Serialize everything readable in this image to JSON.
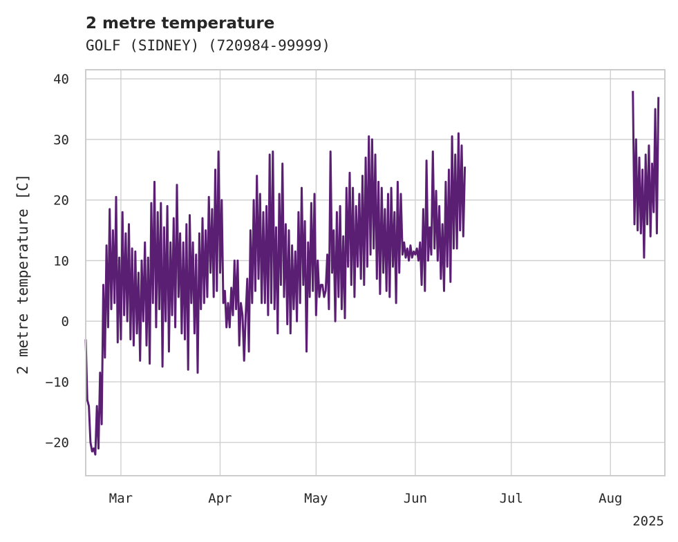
{
  "chart_data": {
    "type": "line",
    "title": "2 metre temperature",
    "subtitle": "GOLF (SIDNEY) (720984-99999)",
    "ylabel": "2 metre temperature [C]",
    "xlabel": "",
    "xlim": [
      "2025-02-18",
      "2025-08-18"
    ],
    "ylim": [
      -25.5,
      41.5
    ],
    "yticks": [
      40,
      30,
      20,
      10,
      0,
      -10,
      -20
    ],
    "ytick_labels": [
      "40",
      "30",
      "20",
      "10",
      "0",
      "−10",
      "−20"
    ],
    "xticks": [
      "2025-03-01",
      "2025-04-01",
      "2025-05-01",
      "2025-06-01",
      "2025-07-01",
      "2025-08-01"
    ],
    "xtick_labels": [
      "Mar",
      "Apr",
      "May",
      "Jun",
      "Jul",
      "Aug"
    ],
    "xaxis_offset_label": "2025",
    "grid": true,
    "line_color": "#5a1f73",
    "series": [
      {
        "points": [
          [
            "2025-02-18T00",
            -3
          ],
          [
            "2025-02-18T12",
            -13
          ],
          [
            "2025-02-19T00",
            -14
          ],
          [
            "2025-02-19T12",
            -20
          ],
          [
            "2025-02-20T00",
            -21.5
          ],
          [
            "2025-02-20T12",
            -21
          ],
          [
            "2025-02-21T00",
            -22
          ],
          [
            "2025-02-21T12",
            -14
          ],
          [
            "2025-02-22T00",
            -21
          ],
          [
            "2025-02-22T12",
            -8.5
          ],
          [
            "2025-02-23T00",
            -17
          ],
          [
            "2025-02-23T12",
            6
          ],
          [
            "2025-02-24T00",
            -6
          ],
          [
            "2025-02-24T12",
            12.5
          ],
          [
            "2025-02-25T00",
            -1
          ],
          [
            "2025-02-25T12",
            18.5
          ],
          [
            "2025-02-26T00",
            2
          ],
          [
            "2025-02-26T12",
            15
          ],
          [
            "2025-02-27T00",
            3
          ],
          [
            "2025-02-27T12",
            20.5
          ],
          [
            "2025-02-28T00",
            -3.5
          ],
          [
            "2025-02-28T12",
            10.5
          ],
          [
            "2025-03-01T00",
            -3
          ],
          [
            "2025-03-01T12",
            18
          ],
          [
            "2025-03-02T00",
            1
          ],
          [
            "2025-03-02T12",
            14.5
          ],
          [
            "2025-03-03T00",
            0
          ],
          [
            "2025-03-03T12",
            16
          ],
          [
            "2025-03-04T00",
            -3
          ],
          [
            "2025-03-04T12",
            12
          ],
          [
            "2025-03-05T00",
            -4
          ],
          [
            "2025-03-05T12",
            11.5
          ],
          [
            "2025-03-06T00",
            -2
          ],
          [
            "2025-03-06T12",
            8
          ],
          [
            "2025-03-07T00",
            -6.5
          ],
          [
            "2025-03-07T12",
            10
          ],
          [
            "2025-03-08T00",
            0
          ],
          [
            "2025-03-08T12",
            13
          ],
          [
            "2025-03-09T00",
            -4
          ],
          [
            "2025-03-09T12",
            10.5
          ],
          [
            "2025-03-10T00",
            -7
          ],
          [
            "2025-03-10T12",
            19.5
          ],
          [
            "2025-03-11T00",
            3
          ],
          [
            "2025-03-11T12",
            23
          ],
          [
            "2025-03-12T00",
            -1
          ],
          [
            "2025-03-12T12",
            18
          ],
          [
            "2025-03-13T00",
            2
          ],
          [
            "2025-03-13T12",
            19.5
          ],
          [
            "2025-03-14T00",
            -7.5
          ],
          [
            "2025-03-14T12",
            15.5
          ],
          [
            "2025-03-15T00",
            0
          ],
          [
            "2025-03-15T12",
            19
          ],
          [
            "2025-03-16T00",
            -5
          ],
          [
            "2025-03-16T12",
            13
          ],
          [
            "2025-03-17T00",
            1
          ],
          [
            "2025-03-17T12",
            17
          ],
          [
            "2025-03-18T00",
            -1
          ],
          [
            "2025-03-18T12",
            22.5
          ],
          [
            "2025-03-19T00",
            4
          ],
          [
            "2025-03-19T12",
            14.5
          ],
          [
            "2025-03-20T00",
            -2
          ],
          [
            "2025-03-20T12",
            13
          ],
          [
            "2025-03-21T00",
            -3
          ],
          [
            "2025-03-21T12",
            16
          ],
          [
            "2025-03-22T00",
            -8
          ],
          [
            "2025-03-22T12",
            17.5
          ],
          [
            "2025-03-23T00",
            3
          ],
          [
            "2025-03-23T12",
            13
          ],
          [
            "2025-03-24T00",
            -2
          ],
          [
            "2025-03-24T12",
            11
          ],
          [
            "2025-03-25T00",
            -8.5
          ],
          [
            "2025-03-25T12",
            14.5
          ],
          [
            "2025-03-26T00",
            2
          ],
          [
            "2025-03-26T12",
            17
          ],
          [
            "2025-03-27T00",
            3
          ],
          [
            "2025-03-27T12",
            15
          ],
          [
            "2025-03-28T00",
            4
          ],
          [
            "2025-03-28T12",
            20.5
          ],
          [
            "2025-03-29T00",
            8
          ],
          [
            "2025-03-29T12",
            18.5
          ],
          [
            "2025-03-30T00",
            4
          ],
          [
            "2025-03-30T12",
            25
          ],
          [
            "2025-03-31T00",
            5
          ],
          [
            "2025-03-31T12",
            28
          ],
          [
            "2025-04-01T00",
            8
          ],
          [
            "2025-04-01T12",
            20
          ],
          [
            "2025-04-02T00",
            3
          ],
          [
            "2025-04-02T12",
            5
          ],
          [
            "2025-04-03T00",
            -1
          ],
          [
            "2025-04-03T12",
            3
          ],
          [
            "2025-04-04T00",
            -1
          ],
          [
            "2025-04-04T12",
            5.5
          ],
          [
            "2025-04-05T00",
            1
          ],
          [
            "2025-04-05T12",
            10
          ],
          [
            "2025-04-06T00",
            2
          ],
          [
            "2025-04-06T12",
            10
          ],
          [
            "2025-04-07T00",
            -4
          ],
          [
            "2025-04-07T12",
            3
          ],
          [
            "2025-04-08T00",
            1
          ],
          [
            "2025-04-08T12",
            -6.5
          ],
          [
            "2025-04-09T00",
            1
          ],
          [
            "2025-04-09T12",
            7
          ],
          [
            "2025-04-10T00",
            -5
          ],
          [
            "2025-04-10T12",
            15
          ],
          [
            "2025-04-11T00",
            3
          ],
          [
            "2025-04-11T12",
            20
          ],
          [
            "2025-04-12T00",
            5
          ],
          [
            "2025-04-12T12",
            24
          ],
          [
            "2025-04-13T00",
            7
          ],
          [
            "2025-04-13T12",
            21
          ],
          [
            "2025-04-14T00",
            3
          ],
          [
            "2025-04-14T12",
            18
          ],
          [
            "2025-04-15T00",
            3
          ],
          [
            "2025-04-15T12",
            19
          ],
          [
            "2025-04-16T00",
            1
          ],
          [
            "2025-04-16T12",
            27.5
          ],
          [
            "2025-04-17T00",
            3
          ],
          [
            "2025-04-17T12",
            28
          ],
          [
            "2025-04-18T00",
            2
          ],
          [
            "2025-04-18T12",
            15.5
          ],
          [
            "2025-04-19T00",
            -2
          ],
          [
            "2025-04-19T12",
            21
          ],
          [
            "2025-04-20T00",
            6
          ],
          [
            "2025-04-20T12",
            26
          ],
          [
            "2025-04-21T00",
            4
          ],
          [
            "2025-04-21T12",
            16
          ],
          [
            "2025-04-22T00",
            -0.5
          ],
          [
            "2025-04-22T12",
            15
          ],
          [
            "2025-04-23T00",
            -2
          ],
          [
            "2025-04-23T12",
            12.5
          ],
          [
            "2025-04-24T00",
            2
          ],
          [
            "2025-04-24T12",
            11.5
          ],
          [
            "2025-04-25T00",
            0
          ],
          [
            "2025-04-25T12",
            18
          ],
          [
            "2025-04-26T00",
            3
          ],
          [
            "2025-04-26T12",
            22
          ],
          [
            "2025-04-27T00",
            6
          ],
          [
            "2025-04-27T12",
            16.5
          ],
          [
            "2025-04-28T00",
            -5
          ],
          [
            "2025-04-28T12",
            13
          ],
          [
            "2025-04-29T00",
            4
          ],
          [
            "2025-04-29T12",
            19.5
          ],
          [
            "2025-04-30T00",
            5
          ],
          [
            "2025-04-30T12",
            21
          ],
          [
            "2025-05-01T00",
            1
          ],
          [
            "2025-05-01T12",
            10
          ],
          [
            "2025-05-02T00",
            4
          ],
          [
            "2025-05-02T12",
            6
          ],
          [
            "2025-05-03T00",
            6
          ],
          [
            "2025-05-03T12",
            4
          ],
          [
            "2025-05-04T00",
            5
          ],
          [
            "2025-05-04T12",
            11
          ],
          [
            "2025-05-05T00",
            2
          ],
          [
            "2025-05-05T12",
            28
          ],
          [
            "2025-05-06T00",
            8
          ],
          [
            "2025-05-06T12",
            15
          ],
          [
            "2025-05-07T00",
            0
          ],
          [
            "2025-05-07T12",
            18
          ],
          [
            "2025-05-08T00",
            4
          ],
          [
            "2025-05-08T12",
            19
          ],
          [
            "2025-05-09T00",
            2
          ],
          [
            "2025-05-09T12",
            14
          ],
          [
            "2025-05-10T00",
            0.5
          ],
          [
            "2025-05-10T12",
            22
          ],
          [
            "2025-05-11T00",
            9
          ],
          [
            "2025-05-11T12",
            24.5
          ],
          [
            "2025-05-12T00",
            6
          ],
          [
            "2025-05-12T12",
            22
          ],
          [
            "2025-05-13T00",
            4
          ],
          [
            "2025-05-13T12",
            19
          ],
          [
            "2025-05-14T00",
            9
          ],
          [
            "2025-05-14T12",
            21
          ],
          [
            "2025-05-15T00",
            7
          ],
          [
            "2025-05-15T12",
            24
          ],
          [
            "2025-05-16T00",
            6
          ],
          [
            "2025-05-16T12",
            27
          ],
          [
            "2025-05-17T00",
            9
          ],
          [
            "2025-05-17T12",
            30.5
          ],
          [
            "2025-05-18T00",
            11
          ],
          [
            "2025-05-18T12",
            30
          ],
          [
            "2025-05-19T00",
            12
          ],
          [
            "2025-05-19T12",
            27.5
          ],
          [
            "2025-05-20T00",
            7
          ],
          [
            "2025-05-20T12",
            23
          ],
          [
            "2025-05-21T00",
            4.5
          ],
          [
            "2025-05-21T12",
            22
          ],
          [
            "2025-05-22T00",
            8
          ],
          [
            "2025-05-22T12",
            18.5
          ],
          [
            "2025-05-23T00",
            5
          ],
          [
            "2025-05-23T12",
            21
          ],
          [
            "2025-05-24T00",
            4
          ],
          [
            "2025-05-24T12",
            22
          ],
          [
            "2025-05-25T00",
            9
          ],
          [
            "2025-05-25T12",
            18
          ],
          [
            "2025-05-26T00",
            3
          ],
          [
            "2025-05-26T12",
            23
          ],
          [
            "2025-05-27T00",
            8
          ],
          [
            "2025-05-27T12",
            21
          ],
          [
            "2025-05-28T00",
            11
          ],
          [
            "2025-05-28T12",
            13
          ],
          [
            "2025-05-29T00",
            10.5
          ],
          [
            "2025-05-29T12",
            12
          ],
          [
            "2025-05-30T00",
            10
          ],
          [
            "2025-05-30T12",
            12.5
          ],
          [
            "2025-05-31T00",
            10.5
          ],
          [
            "2025-05-31T12",
            11.5
          ],
          [
            "2025-06-01T00",
            11
          ],
          [
            "2025-06-01T12",
            12
          ],
          [
            "2025-06-02T00",
            10
          ],
          [
            "2025-06-02T12",
            13
          ],
          [
            "2025-06-03T00",
            6
          ],
          [
            "2025-06-03T12",
            18.5
          ],
          [
            "2025-06-04T00",
            5
          ],
          [
            "2025-06-04T12",
            26.5
          ],
          [
            "2025-06-05T00",
            10
          ],
          [
            "2025-06-05T12",
            15.5
          ],
          [
            "2025-06-06T00",
            11
          ],
          [
            "2025-06-06T12",
            28
          ],
          [
            "2025-06-07T00",
            12
          ],
          [
            "2025-06-07T12",
            21.5
          ],
          [
            "2025-06-08T00",
            10
          ],
          [
            "2025-06-08T12",
            19
          ],
          [
            "2025-06-09T00",
            7
          ],
          [
            "2025-06-09T12",
            16
          ],
          [
            "2025-06-10T00",
            5
          ],
          [
            "2025-06-10T12",
            23
          ],
          [
            "2025-06-11T00",
            9
          ],
          [
            "2025-06-11T12",
            25
          ],
          [
            "2025-06-12T00",
            6.5
          ],
          [
            "2025-06-12T12",
            30.5
          ],
          [
            "2025-06-13T00",
            12
          ],
          [
            "2025-06-13T12",
            27.5
          ],
          [
            "2025-06-14T00",
            12
          ],
          [
            "2025-06-14T12",
            31
          ],
          [
            "2025-06-15T00",
            15
          ],
          [
            "2025-06-15T12",
            29
          ],
          [
            "2025-06-16T00",
            14
          ],
          [
            "2025-06-16T12",
            25.5
          ],
          [
            null,
            null
          ],
          [
            "2025-08-08T00",
            38
          ],
          [
            "2025-08-08T12",
            16
          ],
          [
            "2025-08-09T00",
            30
          ],
          [
            "2025-08-09T12",
            15
          ],
          [
            "2025-08-10T00",
            27
          ],
          [
            "2025-08-10T12",
            14.5
          ],
          [
            "2025-08-11T00",
            25
          ],
          [
            "2025-08-11T12",
            10.5
          ],
          [
            "2025-08-12T00",
            27.5
          ],
          [
            "2025-08-12T12",
            16
          ],
          [
            "2025-08-13T00",
            29
          ],
          [
            "2025-08-13T12",
            14
          ],
          [
            "2025-08-14T00",
            26
          ],
          [
            "2025-08-14T12",
            18
          ],
          [
            "2025-08-15T00",
            35
          ],
          [
            "2025-08-15T12",
            14.5
          ],
          [
            "2025-08-16T00",
            37
          ]
        ]
      }
    ]
  }
}
